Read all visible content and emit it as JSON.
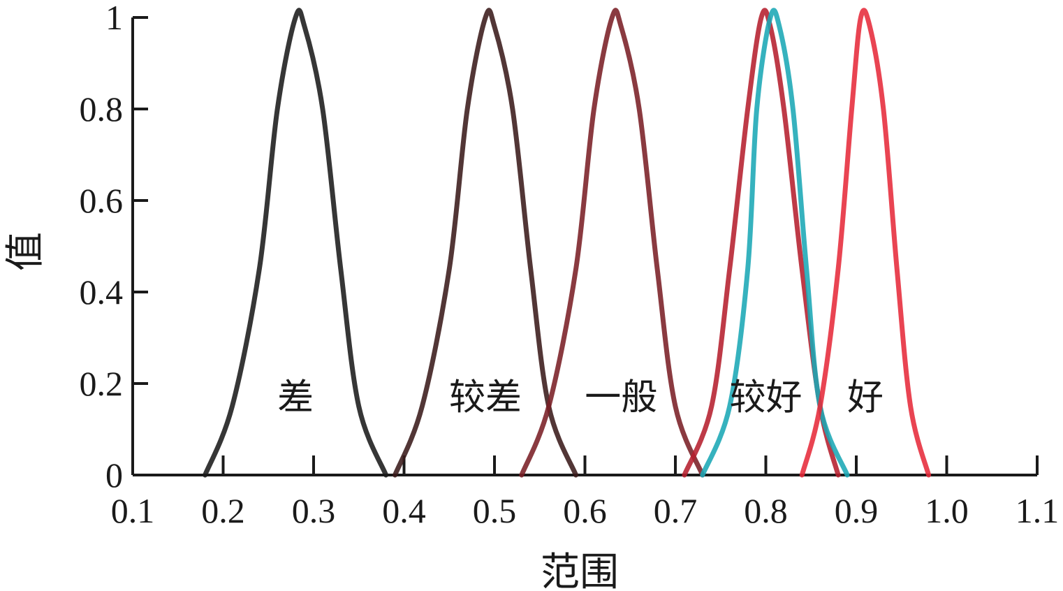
{
  "chart_data": {
    "type": "line",
    "title": "",
    "xlabel": "范围",
    "ylabel": "值",
    "xlim": [
      0.1,
      1.1
    ],
    "ylim": [
      0,
      1
    ],
    "xticks": [
      0.1,
      0.2,
      0.3,
      0.4,
      0.5,
      0.6,
      0.7,
      0.8,
      0.9,
      1.0,
      1.1
    ],
    "xtick_labels": [
      "0.1",
      "0.2",
      "0.3",
      "0.4",
      "0.5",
      "0.6",
      "0.7",
      "0.8",
      "0.9",
      "1.0",
      "1.1"
    ],
    "yticks": [
      0,
      0.2,
      0.4,
      0.6,
      0.8,
      1
    ],
    "ytick_labels": [
      "0",
      "0.2",
      "0.4",
      "0.6",
      "0.8",
      "1"
    ],
    "grid": false,
    "series": [
      {
        "name": "差",
        "color": "#1a1a1a",
        "x": [
          0.18,
          0.21,
          0.24,
          0.26,
          0.28,
          0.29,
          0.31,
          0.33,
          0.35,
          0.38
        ],
        "y": [
          0.0,
          0.15,
          0.45,
          0.8,
          1.0,
          0.98,
          0.8,
          0.45,
          0.15,
          0.0
        ],
        "label_at": [
          0.28,
          0.17
        ]
      },
      {
        "name": "较差",
        "color": "#3a1a1a",
        "x": [
          0.39,
          0.42,
          0.45,
          0.47,
          0.49,
          0.5,
          0.52,
          0.54,
          0.56,
          0.59
        ],
        "y": [
          0.0,
          0.15,
          0.45,
          0.8,
          1.0,
          0.98,
          0.8,
          0.45,
          0.15,
          0.0
        ],
        "label_at": [
          0.49,
          0.17
        ]
      },
      {
        "name": "一般",
        "color": "#7a1f26",
        "x": [
          0.53,
          0.56,
          0.59,
          0.61,
          0.63,
          0.64,
          0.66,
          0.68,
          0.7,
          0.73
        ],
        "y": [
          0.0,
          0.15,
          0.45,
          0.8,
          1.0,
          0.98,
          0.8,
          0.45,
          0.15,
          0.0
        ],
        "label_at": [
          0.64,
          0.17
        ]
      },
      {
        "name": "",
        "color": "#b51f2e",
        "x": [
          0.71,
          0.74,
          0.76,
          0.78,
          0.795,
          0.805,
          0.82,
          0.84,
          0.86,
          0.88
        ],
        "y": [
          0.0,
          0.15,
          0.45,
          0.8,
          1.0,
          0.98,
          0.8,
          0.45,
          0.15,
          0.0
        ],
        "label_at": null
      },
      {
        "name": "较好",
        "color": "#1aa7b5",
        "x": [
          0.73,
          0.76,
          0.78,
          0.79,
          0.805,
          0.815,
          0.83,
          0.845,
          0.86,
          0.89
        ],
        "y": [
          0.0,
          0.15,
          0.45,
          0.8,
          1.0,
          0.98,
          0.8,
          0.45,
          0.15,
          0.0
        ],
        "label_at": [
          0.8,
          0.17
        ]
      },
      {
        "name": "好",
        "color": "#e62a3a",
        "x": [
          0.84,
          0.86,
          0.88,
          0.895,
          0.905,
          0.915,
          0.93,
          0.945,
          0.96,
          0.98
        ],
        "y": [
          0.0,
          0.15,
          0.45,
          0.8,
          1.0,
          0.98,
          0.8,
          0.45,
          0.15,
          0.0
        ],
        "label_at": [
          0.91,
          0.17
        ]
      }
    ]
  }
}
